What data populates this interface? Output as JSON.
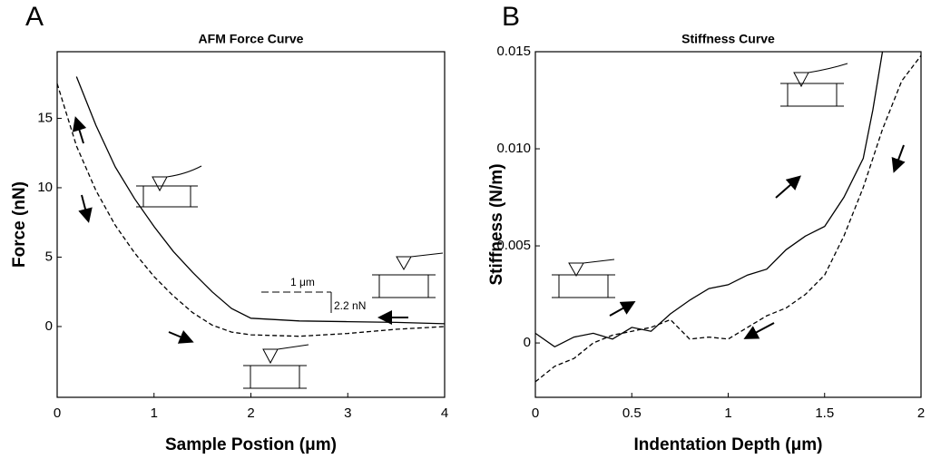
{
  "chart_data": [
    {
      "type": "line",
      "panel_label": "A",
      "title": "AFM Force Curve",
      "x_label": "Sample Postion (μm)",
      "y_label": "Force (nN)",
      "xlim": [
        0,
        4
      ],
      "xticks": [
        0,
        1,
        2,
        3,
        4
      ],
      "ylim": [
        -5.1,
        19.8
      ],
      "yticks": [
        0,
        5,
        10,
        15
      ],
      "annotations": [
        "1 μm",
        "2.2 nN"
      ],
      "series": [
        {
          "color": "#000000",
          "dashed": false,
          "x": [
            0.2,
            0.4,
            0.6,
            0.8,
            1.0,
            1.2,
            1.4,
            1.6,
            1.8,
            2.0,
            2.5,
            3.0,
            3.5,
            4.0
          ],
          "y": [
            18,
            14.5,
            11.5,
            9.2,
            7.2,
            5.4,
            3.9,
            2.5,
            1.3,
            0.6,
            0.4,
            0.35,
            0.3,
            0.2
          ]
        },
        {
          "color": "#000000",
          "dashed": true,
          "x": [
            0,
            0.2,
            0.4,
            0.6,
            0.8,
            1.0,
            1.2,
            1.4,
            1.6,
            1.8,
            2.0,
            2.5,
            3.0,
            3.5,
            4.0
          ],
          "y": [
            17.5,
            13,
            9.8,
            7.3,
            5.3,
            3.6,
            2.2,
            1.0,
            0.1,
            -0.4,
            -0.6,
            -0.7,
            -0.5,
            -0.2,
            0
          ]
        }
      ]
    },
    {
      "type": "line",
      "panel_label": "B",
      "title": "Stiffness Curve",
      "x_label": "Indentation Depth (μm)",
      "y_label": "Stiffness (N/m)",
      "xlim": [
        0,
        2
      ],
      "xticks": [
        0,
        0.5,
        1,
        1.5,
        2
      ],
      "ylim": [
        -0.0028,
        0.015
      ],
      "yticks": [
        0,
        0.005,
        {
          "value": 0.01,
          "label": "0.010"
        },
        0.015
      ],
      "series": [
        {
          "color": "#000000",
          "dashed": false,
          "x": [
            0,
            0.1,
            0.2,
            0.3,
            0.4,
            0.5,
            0.6,
            0.7,
            0.8,
            0.9,
            1.0,
            1.1,
            1.2,
            1.3,
            1.4,
            1.5,
            1.6,
            1.7,
            1.75,
            1.8
          ],
          "y": [
            0.0005,
            -0.0002,
            0.0003,
            0.0005,
            0.0002,
            0.0008,
            0.0006,
            0.0015,
            0.0022,
            0.0028,
            0.003,
            0.0035,
            0.0038,
            0.0048,
            0.0055,
            0.006,
            0.0075,
            0.0095,
            0.012,
            0.015
          ]
        },
        {
          "color": "#000000",
          "dashed": true,
          "x": [
            0,
            0.1,
            0.2,
            0.3,
            0.4,
            0.5,
            0.6,
            0.7,
            0.8,
            0.9,
            1.0,
            1.1,
            1.2,
            1.3,
            1.4,
            1.5,
            1.6,
            1.7,
            1.8,
            1.9,
            2.0
          ],
          "y": [
            -0.002,
            -0.0012,
            -0.0008,
            0,
            0.0004,
            0.0006,
            0.0008,
            0.0012,
            0.0002,
            0.0003,
            0.0002,
            0.0008,
            0.0014,
            0.0018,
            0.0025,
            0.0035,
            0.0055,
            0.008,
            0.011,
            0.0135,
            0.0148
          ]
        }
      ]
    }
  ]
}
